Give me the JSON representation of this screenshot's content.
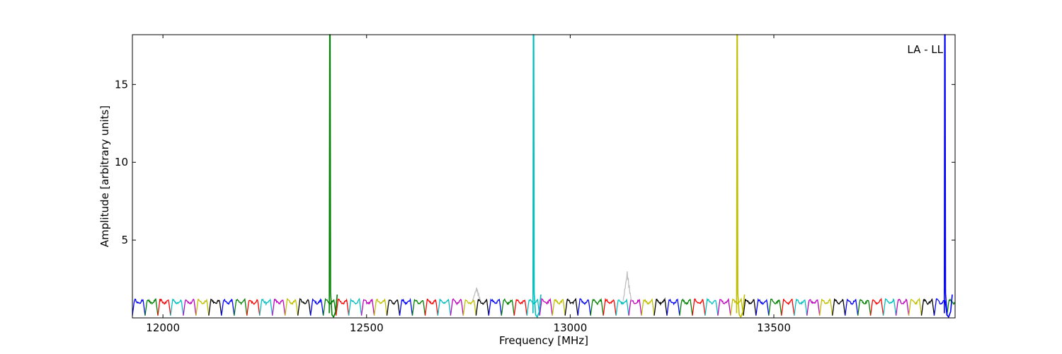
{
  "chart_data": {
    "type": "line",
    "title": "",
    "xlabel": "Frequency [MHz]",
    "ylabel": "Amplitude [arbitrary units]",
    "annotation": "LA - LL",
    "xlim": [
      11925,
      13945
    ],
    "ylim": [
      0,
      18.2
    ],
    "xticks": [
      12000,
      12500,
      13000,
      13500
    ],
    "yticks": [
      5,
      10,
      15
    ],
    "grid": false,
    "legend": "none",
    "channel_width_mhz": 31.25,
    "colors": [
      "#0000ff",
      "#008000",
      "#ff0000",
      "#00bfbf",
      "#bf00bf",
      "#bfbf00",
      "#000000",
      "#bfbfbf"
    ],
    "spikes": [
      {
        "x": 12410,
        "y": 18.2,
        "color": "#008000"
      },
      {
        "x": 12910,
        "y": 18.2,
        "color": "#00bfbf"
      },
      {
        "x": 13410,
        "y": 18.2,
        "color": "#bfbf00"
      },
      {
        "x": 13920,
        "y": 18.2,
        "color": "#0000ff"
      }
    ],
    "gray_bumps": [
      {
        "x": 12770,
        "y": 2.0
      },
      {
        "x": 13140,
        "y": 3.1
      }
    ]
  }
}
